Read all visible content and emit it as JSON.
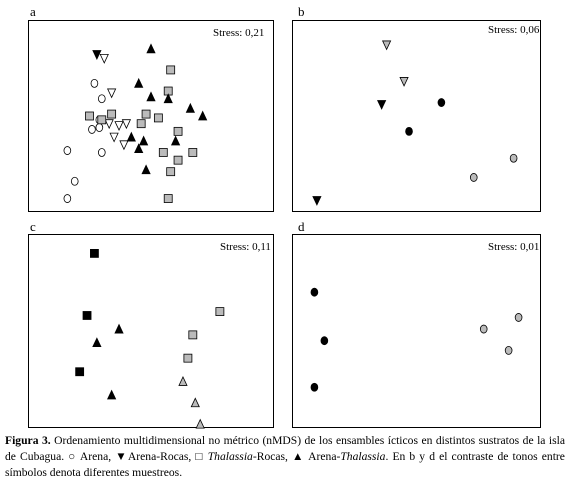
{
  "figure": {
    "caption": {
      "label": "Figura 3.",
      "seg1": " Ordenamiento multidimensional no métrico (nMDS) de los ensambles ícticos en distintos sustratos de la isla de Cubagua. ",
      "sym_circle": "○",
      "seg2": " Arena, ",
      "sym_down": "▼",
      "seg3": "Arena-Rocas, ",
      "sym_square": "□",
      "seg4_italic": "Thalassia",
      "seg5": "-Rocas, ",
      "sym_up": "▲",
      "seg6": " Arena-",
      "seg7_italic": "Thalassia",
      "seg8": ". En b y d  el contraste de tonos entre símbolos denota diferentes muestreos."
    }
  },
  "chart_data": [
    {
      "type": "scatter",
      "panel": "a",
      "stress": "Stress: 0,21",
      "series": [
        {
          "marker": "circle",
          "fill": "#ffffff",
          "x": [
            0.27,
            0.3,
            0.29,
            0.29,
            0.26,
            0.3,
            0.16,
            0.19,
            0.16
          ],
          "y": [
            0.33,
            0.41,
            0.52,
            0.56,
            0.57,
            0.69,
            0.68,
            0.84,
            0.93
          ]
        },
        {
          "marker": "triangle-down",
          "fill": "#ffffff",
          "x": [
            0.31,
            0.34,
            0.33,
            0.4,
            0.37,
            0.35,
            0.39
          ],
          "y": [
            0.2,
            0.38,
            0.54,
            0.54,
            0.55,
            0.61,
            0.65
          ]
        },
        {
          "marker": "triangle-down",
          "fill": "#000000",
          "x": [
            0.28
          ],
          "y": [
            0.18
          ]
        },
        {
          "marker": "square",
          "fill": "#bbbbbb",
          "x": [
            0.58,
            0.57,
            0.25,
            0.3,
            0.34,
            0.48,
            0.53,
            0.46,
            0.61,
            0.67,
            0.55,
            0.61,
            0.58,
            0.57
          ],
          "y": [
            0.26,
            0.37,
            0.5,
            0.52,
            0.49,
            0.49,
            0.51,
            0.54,
            0.58,
            0.69,
            0.69,
            0.73,
            0.79,
            0.93
          ]
        },
        {
          "marker": "triangle-up",
          "fill": "#000000",
          "x": [
            0.5,
            0.45,
            0.5,
            0.57,
            0.66,
            0.71,
            0.42,
            0.47,
            0.6,
            0.45,
            0.48
          ],
          "y": [
            0.15,
            0.33,
            0.4,
            0.41,
            0.46,
            0.5,
            0.61,
            0.63,
            0.63,
            0.67,
            0.78
          ]
        }
      ]
    },
    {
      "type": "scatter",
      "panel": "b",
      "stress": "Stress: 0,06",
      "series": [
        {
          "marker": "triangle-down",
          "fill": "#bbbbbb",
          "x": [
            0.38,
            0.45
          ],
          "y": [
            0.13,
            0.32
          ]
        },
        {
          "marker": "triangle-down",
          "fill": "#000000",
          "x": [
            0.36,
            0.1
          ],
          "y": [
            0.44,
            0.94
          ]
        },
        {
          "marker": "circle",
          "fill": "#000000",
          "x": [
            0.6,
            0.47
          ],
          "y": [
            0.43,
            0.58
          ]
        },
        {
          "marker": "circle",
          "fill": "#bbbbbb",
          "x": [
            0.89,
            0.73
          ],
          "y": [
            0.72,
            0.82
          ]
        }
      ]
    },
    {
      "type": "scatter",
      "panel": "c",
      "stress": "Stress: 0,11",
      "series": [
        {
          "marker": "square",
          "fill": "#000000",
          "x": [
            0.27,
            0.24,
            0.21
          ],
          "y": [
            0.1,
            0.42,
            0.71
          ]
        },
        {
          "marker": "triangle-up",
          "fill": "#000000",
          "x": [
            0.37,
            0.28,
            0.34
          ],
          "y": [
            0.49,
            0.56,
            0.83
          ]
        },
        {
          "marker": "square",
          "fill": "#bbbbbb",
          "x": [
            0.78,
            0.67,
            0.65
          ],
          "y": [
            0.4,
            0.52,
            0.64
          ]
        },
        {
          "marker": "triangle-up",
          "fill": "#bbbbbb",
          "x": [
            0.63,
            0.68,
            0.7
          ],
          "y": [
            0.76,
            0.87,
            0.98
          ]
        }
      ]
    },
    {
      "type": "scatter",
      "panel": "d",
      "stress": "Stress: 0,01",
      "series": [
        {
          "marker": "circle",
          "fill": "#000000",
          "x": [
            0.09,
            0.13,
            0.09
          ],
          "y": [
            0.3,
            0.55,
            0.79
          ]
        },
        {
          "marker": "circle",
          "fill": "#bbbbbb",
          "x": [
            0.91,
            0.77,
            0.87
          ],
          "y": [
            0.43,
            0.49,
            0.6
          ]
        }
      ]
    }
  ]
}
